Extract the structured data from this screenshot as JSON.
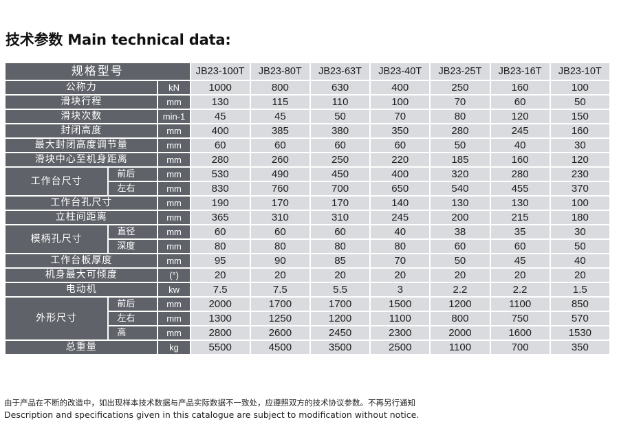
{
  "title": "技术参数 Main technical data:",
  "table": {
    "header_label": "规格型号",
    "models": [
      "JB23-100T",
      "JB23-80T",
      "JB23-63T",
      "JB23-40T",
      "JB23-25T",
      "JB23-16T",
      "JB23-10T"
    ],
    "rows": [
      {
        "label": "公称力",
        "unit": "kN",
        "values": [
          "1000",
          "800",
          "630",
          "400",
          "250",
          "160",
          "100"
        ]
      },
      {
        "label": "滑块行程",
        "unit": "mm",
        "values": [
          "130",
          "115",
          "110",
          "100",
          "70",
          "60",
          "50"
        ]
      },
      {
        "label": "滑块次数",
        "unit": "min-1",
        "values": [
          "45",
          "45",
          "50",
          "70",
          "80",
          "120",
          "150"
        ]
      },
      {
        "label": "封闭高度",
        "unit": "mm",
        "values": [
          "400",
          "385",
          "380",
          "350",
          "280",
          "245",
          "160"
        ]
      },
      {
        "label": "最大封闭高度调节量",
        "unit": "mm",
        "values": [
          "60",
          "60",
          "60",
          "60",
          "50",
          "40",
          "30"
        ]
      },
      {
        "label": "滑块中心至机身距离",
        "unit": "mm",
        "values": [
          "280",
          "260",
          "250",
          "220",
          "185",
          "160",
          "120"
        ]
      },
      {
        "label": "工作台尺寸",
        "sub": "前后",
        "unit": "mm",
        "values": [
          "530",
          "490",
          "450",
          "400",
          "320",
          "280",
          "230"
        ]
      },
      {
        "sub": "左右",
        "unit": "mm",
        "values": [
          "830",
          "760",
          "700",
          "650",
          "540",
          "455",
          "370"
        ]
      },
      {
        "label": "工作台孔尺寸",
        "unit": "mm",
        "values": [
          "190",
          "170",
          "170",
          "140",
          "130",
          "130",
          "100"
        ]
      },
      {
        "label": "立柱间距离",
        "unit": "mm",
        "values": [
          "365",
          "310",
          "310",
          "245",
          "200",
          "215",
          "180"
        ]
      },
      {
        "label": "模柄孔尺寸",
        "sub": "直径",
        "unit": "mm",
        "values": [
          "60",
          "60",
          "60",
          "40",
          "38",
          "35",
          "30"
        ]
      },
      {
        "sub": "深度",
        "unit": "mm",
        "values": [
          "80",
          "80",
          "80",
          "80",
          "60",
          "60",
          "50"
        ]
      },
      {
        "label": "工作台板厚度",
        "unit": "mm",
        "values": [
          "95",
          "90",
          "85",
          "70",
          "50",
          "45",
          "40"
        ]
      },
      {
        "label": "机身最大可倾度",
        "unit": "(°)",
        "values": [
          "20",
          "20",
          "20",
          "20",
          "20",
          "20",
          "20"
        ]
      },
      {
        "label": "电动机",
        "unit": "kw",
        "values": [
          "7.5",
          "7.5",
          "5.5",
          "3",
          "2.2",
          "2.2",
          "1.5"
        ]
      },
      {
        "label": "外形尺寸",
        "sub": "前后",
        "unit": "mm",
        "values": [
          "2000",
          "1700",
          "1700",
          "1500",
          "1200",
          "1100",
          "850"
        ]
      },
      {
        "sub": "左右",
        "unit": "mm",
        "values": [
          "1300",
          "1250",
          "1200",
          "1100",
          "800",
          "750",
          "570"
        ]
      },
      {
        "sub": "高",
        "unit": "mm",
        "values": [
          "2800",
          "2600",
          "2450",
          "2300",
          "2000",
          "1600",
          "1530"
        ]
      },
      {
        "label": "总重量",
        "unit": "kg",
        "values": [
          "5500",
          "4500",
          "3500",
          "2500",
          "1100",
          "700",
          "350"
        ]
      }
    ]
  },
  "footnote": {
    "cn": "由于产品在不断的改造中，如出现样本技术数据与产品实际数据不一致处，应遵照双方的技术协议参数。不再另行通知",
    "en": "Description and specifications given in this catalogue are subject to modification without notice."
  },
  "colors": {
    "header_cell": "#5f6268",
    "value_cell": "#d9dbde",
    "label_text": "#ffffff",
    "value_text": "#1c1c1c"
  }
}
